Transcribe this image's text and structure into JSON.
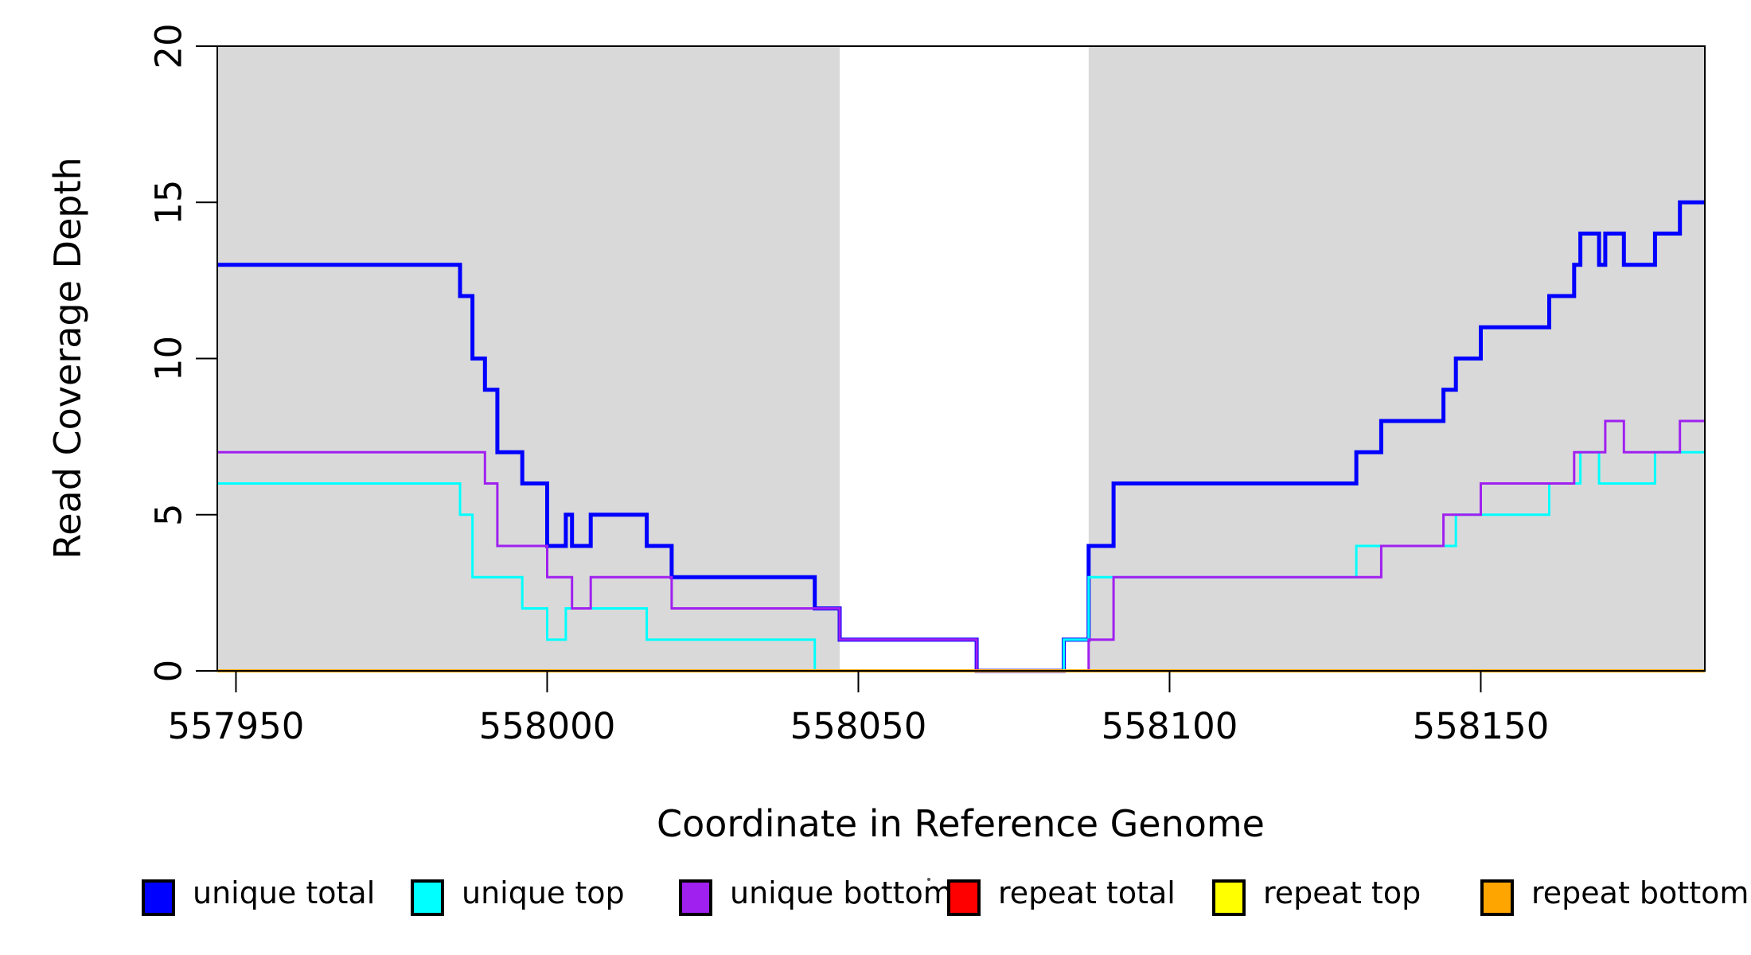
{
  "chart_data": {
    "type": "step-line",
    "title": "",
    "xlabel": "Coordinate in Reference Genome",
    "ylabel": "Read Coverage Depth",
    "x_range": [
      557947,
      558186
    ],
    "y_range": [
      0,
      20
    ],
    "x_ticks": [
      {
        "value": 557950,
        "label": "557950"
      },
      {
        "value": 558000,
        "label": "558000"
      },
      {
        "value": 558050,
        "label": "558050"
      },
      {
        "value": 558100,
        "label": "558100"
      },
      {
        "value": 558150,
        "label": "558150"
      }
    ],
    "y_ticks": [
      {
        "value": 0,
        "label": "0"
      },
      {
        "value": 5,
        "label": "5"
      },
      {
        "value": 10,
        "label": "10"
      },
      {
        "value": 15,
        "label": "15"
      },
      {
        "value": 20,
        "label": "20"
      }
    ],
    "grid": false,
    "legend_position": "bottom",
    "shaded_regions": [
      {
        "name": "unique-region-left",
        "x0": 557947,
        "x1": 558047,
        "color": "#d9d9d9"
      },
      {
        "name": "unique-region-right",
        "x0": 558087,
        "x1": 558186,
        "color": "#d9d9d9"
      }
    ],
    "gap_region": {
      "x0": 558047,
      "x1": 558087,
      "color": "#ffffff"
    },
    "series_x_end": 558186,
    "series": [
      {
        "name": "unique total",
        "color": "#0000ff",
        "line_width": 5,
        "transitions": [
          [
            557947,
            13
          ],
          [
            557986,
            12
          ],
          [
            557988,
            10
          ],
          [
            557990,
            9
          ],
          [
            557992,
            7
          ],
          [
            557996,
            6
          ],
          [
            558000,
            4
          ],
          [
            558003,
            5
          ],
          [
            558004,
            4
          ],
          [
            558007,
            5
          ],
          [
            558016,
            4
          ],
          [
            558020,
            3
          ],
          [
            558043,
            2
          ],
          [
            558047,
            1
          ],
          [
            558069,
            0
          ],
          [
            558083,
            1
          ],
          [
            558087,
            4
          ],
          [
            558091,
            6
          ],
          [
            558130,
            7
          ],
          [
            558134,
            8
          ],
          [
            558144,
            9
          ],
          [
            558146,
            10
          ],
          [
            558150,
            11
          ],
          [
            558161,
            12
          ],
          [
            558165,
            13
          ],
          [
            558166,
            14
          ],
          [
            558169,
            13
          ],
          [
            558170,
            14
          ],
          [
            558173,
            13
          ],
          [
            558178,
            14
          ],
          [
            558182,
            15
          ]
        ]
      },
      {
        "name": "unique top",
        "color": "#00ffff",
        "line_width": 3,
        "transitions": [
          [
            557947,
            6
          ],
          [
            557986,
            5
          ],
          [
            557988,
            3
          ],
          [
            557996,
            2
          ],
          [
            558000,
            1
          ],
          [
            558003,
            2
          ],
          [
            558016,
            1
          ],
          [
            558043,
            0
          ],
          [
            558083,
            1
          ],
          [
            558087,
            3
          ],
          [
            558130,
            4
          ],
          [
            558146,
            5
          ],
          [
            558161,
            6
          ],
          [
            558166,
            7
          ],
          [
            558169,
            6
          ],
          [
            558178,
            7
          ]
        ]
      },
      {
        "name": "unique bottom",
        "color": "#a020f0",
        "line_width": 3,
        "transitions": [
          [
            557947,
            7
          ],
          [
            557990,
            6
          ],
          [
            557992,
            4
          ],
          [
            558000,
            3
          ],
          [
            558004,
            2
          ],
          [
            558007,
            3
          ],
          [
            558020,
            2
          ],
          [
            558047,
            1
          ],
          [
            558069,
            0
          ],
          [
            558087,
            1
          ],
          [
            558091,
            3
          ],
          [
            558134,
            4
          ],
          [
            558144,
            5
          ],
          [
            558150,
            6
          ],
          [
            558165,
            7
          ],
          [
            558170,
            8
          ],
          [
            558173,
            7
          ],
          [
            558182,
            8
          ]
        ]
      },
      {
        "name": "repeat total",
        "color": "#ff0000",
        "line_width": 3,
        "transitions": [
          [
            557947,
            0
          ]
        ]
      },
      {
        "name": "repeat top",
        "color": "#ffff00",
        "line_width": 3,
        "transitions": [
          [
            557947,
            0
          ]
        ]
      },
      {
        "name": "repeat bottom",
        "color": "#ffa500",
        "line_width": 4,
        "transitions": [
          [
            557947,
            0
          ]
        ]
      }
    ],
    "legend": [
      {
        "label": "unique total",
        "color": "#0000ff"
      },
      {
        "label": "unique top",
        "color": "#00ffff"
      },
      {
        "label": "unique bottom",
        "color": "#a020f0"
      },
      {
        "label": "repeat total",
        "color": "#ff0000"
      },
      {
        "label": "repeat top",
        "color": "#ffff00"
      },
      {
        "label": "repeat bottom",
        "color": "#ffa500"
      }
    ]
  }
}
